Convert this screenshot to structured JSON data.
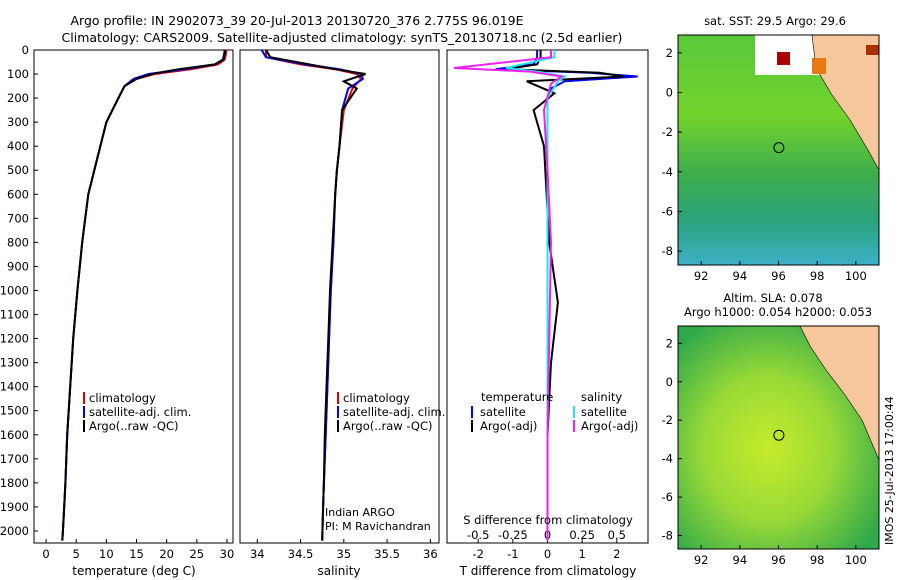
{
  "title": {
    "line1": "Argo profile: IN 2902073_39 20-Jul-2013 20130720_376 2.775S 96.019E",
    "line2": "Climatology: CARS2009. Satellite-adjusted climatology: synTS_20130718.nc (2.5d earlier)"
  },
  "stamp": "IMOS 25-Jul-2013 17:00:44",
  "colors": {
    "clim": "#dd0000",
    "sat": "#0000ee",
    "argo": "#000000",
    "sal_sat": "#22e5ee",
    "sal_argo": "#ee22ee"
  },
  "depth_ticks": [
    "0",
    "100",
    "200",
    "300",
    "400",
    "500",
    "600",
    "700",
    "800",
    "900",
    "1000",
    "1100",
    "1200",
    "1300",
    "1400",
    "1500",
    "1600",
    "1700",
    "1800",
    "1900",
    "2000"
  ],
  "temp_panel": {
    "xlabel": "temperature (deg C)",
    "xticks": [
      "0",
      "5",
      "10",
      "15",
      "20",
      "25",
      "30"
    ],
    "legend": [
      "climatology",
      "satellite-adj. clim.",
      "Argo(..raw -QC)"
    ]
  },
  "sal_panel": {
    "xlabel": "salinity",
    "xticks": [
      "34",
      "34.5",
      "35",
      "35.5",
      "36"
    ],
    "legend": [
      "climatology",
      "satellite-adj. clim.",
      "Argo(..raw -QC)"
    ],
    "note1": "Indian ARGO",
    "note2": "PI: M Ravichandran"
  },
  "diff_panel": {
    "xlabel": "T difference from climatology",
    "top_label": "S difference from climatology",
    "xticks_T": [
      "-2",
      "-1",
      "0",
      "1",
      "2"
    ],
    "xticks_S": [
      "-0.5",
      "-0.25",
      "0",
      "0.25",
      "0.5"
    ],
    "legend_head_t": "temperature",
    "legend_head_s": "salinity",
    "legend_t": [
      "satellite",
      "Argo(-adj)"
    ],
    "legend_s": [
      "satellite",
      "Argo(-adj)"
    ]
  },
  "map_sst": {
    "title": "sat. SST: 29.5  Argo: 29.6",
    "xticks": [
      "92",
      "94",
      "96",
      "98",
      "100"
    ],
    "yticks": [
      "2",
      "0",
      "-2",
      "-4",
      "-6",
      "-8"
    ],
    "marker": {
      "lon": 96.02,
      "lat": -2.78
    }
  },
  "map_sla": {
    "title1": "Altim. SLA: 0.078",
    "title2": "Argo h1000: 0.054  h2000: 0.053",
    "xticks": [
      "92",
      "94",
      "96",
      "98",
      "100"
    ],
    "yticks": [
      "2",
      "0",
      "-2",
      "-4",
      "-6",
      "-8"
    ],
    "marker": {
      "lon": 96.02,
      "lat": -2.78
    }
  },
  "chart_data": [
    {
      "type": "line",
      "title": "",
      "xlabel": "temperature (deg C)",
      "ylabel": "",
      "xlim": [
        -2,
        31
      ],
      "ylim": [
        2050,
        0
      ],
      "series": [
        {
          "name": "climatology",
          "x": [
            29.9,
            29.8,
            29.6,
            28.5,
            24,
            18,
            15,
            13,
            12,
            10,
            9,
            8,
            7,
            6,
            5.2,
            4.5,
            4,
            3.5,
            3.2,
            3,
            2.8,
            2.7
          ],
          "y": [
            0,
            20,
            40,
            60,
            80,
            100,
            120,
            150,
            200,
            300,
            400,
            500,
            600,
            800,
            1000,
            1200,
            1400,
            1600,
            1800,
            1900,
            2000,
            2040
          ]
        },
        {
          "name": "satellite-adj. clim.",
          "x": [
            29.6,
            29.5,
            29.3,
            28,
            23,
            17,
            14.5,
            13,
            12,
            10,
            9,
            8,
            7,
            6,
            5.2,
            4.5,
            4,
            3.5,
            3.2,
            3,
            2.8,
            2.7
          ],
          "y": [
            0,
            20,
            40,
            60,
            80,
            100,
            120,
            150,
            200,
            300,
            400,
            500,
            600,
            800,
            1000,
            1200,
            1400,
            1600,
            1800,
            1900,
            2000,
            2040
          ]
        },
        {
          "name": "Argo(..raw -QC)",
          "x": [
            29.7,
            29.6,
            29.4,
            28,
            22,
            17.5,
            15,
            13,
            12,
            10,
            9,
            8,
            7,
            6,
            5.2,
            4.5,
            4,
            3.5,
            3.2,
            3,
            2.8,
            2.7
          ],
          "y": [
            0,
            20,
            40,
            60,
            80,
            100,
            120,
            150,
            200,
            300,
            400,
            500,
            600,
            800,
            1000,
            1200,
            1400,
            1600,
            1800,
            1900,
            2000,
            2040
          ]
        }
      ]
    },
    {
      "type": "line",
      "title": "",
      "xlabel": "salinity",
      "ylabel": "",
      "xlim": [
        33.8,
        36.1
      ],
      "ylim": [
        2050,
        0
      ],
      "series": [
        {
          "name": "climatology",
          "x": [
            34.1,
            34.1,
            34.5,
            34.9,
            35.15,
            35.2,
            35.1,
            35.0,
            34.95,
            34.92,
            34.9,
            34.88,
            34.85,
            34.83,
            34.81,
            34.79,
            34.77,
            34.76,
            34.75
          ],
          "y": [
            0,
            30,
            60,
            80,
            100,
            120,
            160,
            250,
            400,
            500,
            600,
            800,
            1000,
            1200,
            1400,
            1600,
            1800,
            1900,
            2040
          ]
        },
        {
          "name": "satellite-adj. clim.",
          "x": [
            34.05,
            34.1,
            34.55,
            34.95,
            35.2,
            35.22,
            35.05,
            34.98,
            34.95,
            34.92,
            34.9,
            34.88,
            34.85,
            34.83,
            34.81,
            34.79,
            34.77,
            34.76,
            34.75
          ],
          "y": [
            0,
            30,
            60,
            80,
            100,
            120,
            160,
            250,
            400,
            500,
            600,
            800,
            1000,
            1200,
            1400,
            1600,
            1800,
            1900,
            2040
          ]
        },
        {
          "name": "Argo(..raw -QC)",
          "x": [
            34.1,
            34.15,
            34.6,
            34.9,
            35.25,
            35.0,
            35.15,
            34.98,
            34.95,
            34.92,
            34.9,
            34.87,
            34.84,
            34.82,
            34.8,
            34.78,
            34.77,
            34.76,
            34.75
          ],
          "y": [
            0,
            30,
            60,
            80,
            100,
            130,
            160,
            250,
            400,
            500,
            600,
            800,
            1000,
            1200,
            1400,
            1600,
            1800,
            1900,
            2040
          ]
        }
      ]
    },
    {
      "type": "line",
      "title": "",
      "xlabel": "T difference from climatology",
      "ylabel": "",
      "xlim": [
        -2.9,
        2.9
      ],
      "ylim": [
        2050,
        0
      ],
      "series": [
        {
          "name": "temperature satellite",
          "x": [
            -0.3,
            -0.3,
            -0.4,
            -1.5,
            1.2,
            2.6,
            0.5,
            0.1,
            0,
            0,
            0,
            0,
            0,
            0,
            0
          ],
          "y": [
            0,
            30,
            60,
            80,
            95,
            110,
            130,
            160,
            200,
            400,
            800,
            1200,
            1600,
            2000,
            2040
          ]
        },
        {
          "name": "temperature Argo(-adj)",
          "x": [
            -0.2,
            -0.2,
            -0.3,
            -1.2,
            1.5,
            2.2,
            -0.6,
            0.2,
            -0.4,
            -0.1,
            0.05,
            0.3,
            0.1,
            0,
            0
          ],
          "y": [
            0,
            30,
            60,
            80,
            95,
            110,
            130,
            180,
            250,
            400,
            800,
            1050,
            1300,
            1600,
            2040
          ]
        },
        {
          "name": "salinity satellite",
          "x": [
            0.2,
            0.2,
            -1.2,
            -0.3,
            0.5,
            0.3,
            0,
            0,
            0,
            0,
            0
          ],
          "y": [
            0,
            30,
            75,
            90,
            110,
            130,
            200,
            400,
            800,
            1600,
            2040
          ]
        },
        {
          "name": "salinity Argo(-adj)",
          "x": [
            0.1,
            0.1,
            -2.7,
            -0.5,
            0.4,
            0.1,
            -0.1,
            0,
            0.1,
            0,
            0
          ],
          "y": [
            0,
            30,
            75,
            90,
            110,
            140,
            250,
            500,
            800,
            1600,
            2040
          ]
        }
      ]
    }
  ]
}
